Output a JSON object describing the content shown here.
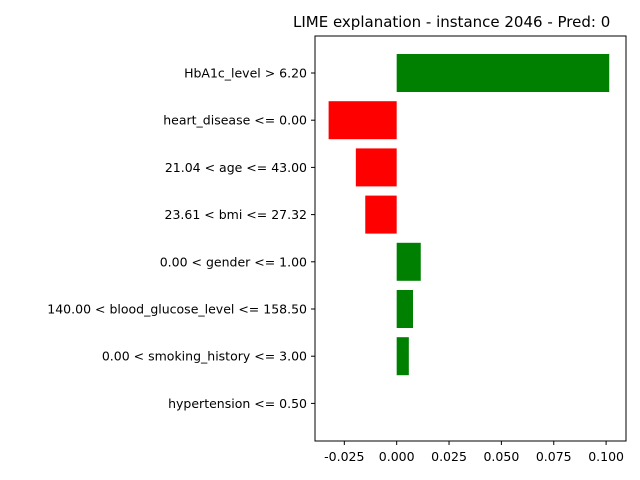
{
  "chart_data": {
    "type": "bar",
    "orientation": "horizontal",
    "title": "LIME explanation - instance 2046 - Pred: 0",
    "categories": [
      "HbA1c_level > 6.20",
      "heart_disease <= 0.00",
      "21.04 < age <= 43.00",
      "23.61 < bmi <= 27.32",
      "0.00 < gender <= 1.00",
      "140.00 < blood_glucose_level <= 158.50",
      "0.00 < smoking_history <= 3.00",
      "hypertension <= 0.50"
    ],
    "values": [
      0.1015,
      -0.0325,
      -0.0195,
      -0.015,
      0.0115,
      0.0078,
      0.0058,
      0.0
    ],
    "xlim": [
      -0.039,
      0.1095
    ],
    "xticks": [
      "-0.025",
      "0.000",
      "0.025",
      "0.050",
      "0.075",
      "0.100"
    ],
    "xtick_values": [
      -0.025,
      0.0,
      0.025,
      0.05,
      0.075,
      0.1
    ],
    "positive_color": "#008000",
    "negative_color": "#ff0000",
    "grid": false,
    "xlabel": "",
    "ylabel": ""
  }
}
